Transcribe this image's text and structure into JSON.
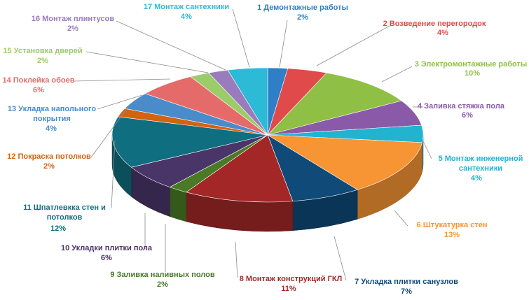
{
  "chart_data": {
    "type": "pie",
    "style": "3d",
    "legend": "none",
    "series": [
      {
        "name": "1 Демонтажные  работы",
        "value": 2,
        "pct": "2%",
        "color": "#2e7fc8"
      },
      {
        "name": "2 Возведение перегородок",
        "value": 4,
        "pct": "4%",
        "color": "#e04a4a"
      },
      {
        "name": "3 Электромонтажные  работы",
        "value": 10,
        "pct": "10%",
        "color": "#8fbf45"
      },
      {
        "name": "4 Заливка  стяжка пола",
        "value": 6,
        "pct": "6%",
        "color": "#8a5aa8"
      },
      {
        "name": "5 Монтаж инженерной сантехники",
        "value": 4,
        "pct": "4%",
        "color": "#22b3d1"
      },
      {
        "name": "6 Штукатурка   стен",
        "value": 13,
        "pct": "13%",
        "color": "#f79433"
      },
      {
        "name": "7 Укладка плитки санузлов",
        "value": 7,
        "pct": "7%",
        "color": "#0f4a78"
      },
      {
        "name": "8 Монтаж конструкций  ГКЛ",
        "value": 11,
        "pct": "11%",
        "color": "#a32727"
      },
      {
        "name": "9 Заливка  наливных полов",
        "value": 2,
        "pct": "2%",
        "color": "#4a7a26"
      },
      {
        "name": "10 Укладки плитки пола",
        "value": 6,
        "pct": "6%",
        "color": "#4a3568"
      },
      {
        "name": "11 Шпатлевкка стен и потолков",
        "value": 12,
        "pct": "12%",
        "color": "#0f6e7f"
      },
      {
        "name": "12 Покраска  потолков",
        "value": 2,
        "pct": "2%",
        "color": "#d2630f"
      },
      {
        "name": "13 Укладка напольного покрытия",
        "value": 4,
        "pct": "4%",
        "color": "#4a8cca"
      },
      {
        "name": "14 Поклейка обоев",
        "value": 6,
        "pct": "6%",
        "color": "#e56b6b"
      },
      {
        "name": "15 Установка  дверей",
        "value": 2,
        "pct": "2%",
        "color": "#9ccb6a"
      },
      {
        "name": "16 Монтаж плинтусов",
        "value": 2,
        "pct": "2%",
        "color": "#9a7bbb"
      },
      {
        "name": "17 Монтаж сантехники",
        "value": 4,
        "pct": "4%",
        "color": "#2cbad6"
      }
    ],
    "label_colors": {
      "1": "#2e7fc8",
      "2": "#e04a4a",
      "3": "#8fbf45",
      "4": "#8a5aa8",
      "5": "#22b3d1",
      "6": "#f79433",
      "7": "#0f4a78",
      "8": "#a32727",
      "9": "#4a7a26",
      "10": "#4a3568",
      "11": "#0f6e7f",
      "12": "#d2630f",
      "13": "#4a8cca",
      "14": "#e56b6b",
      "15": "#9ccb6a",
      "16": "#9a7bbb",
      "17": "#2cbad6"
    }
  }
}
